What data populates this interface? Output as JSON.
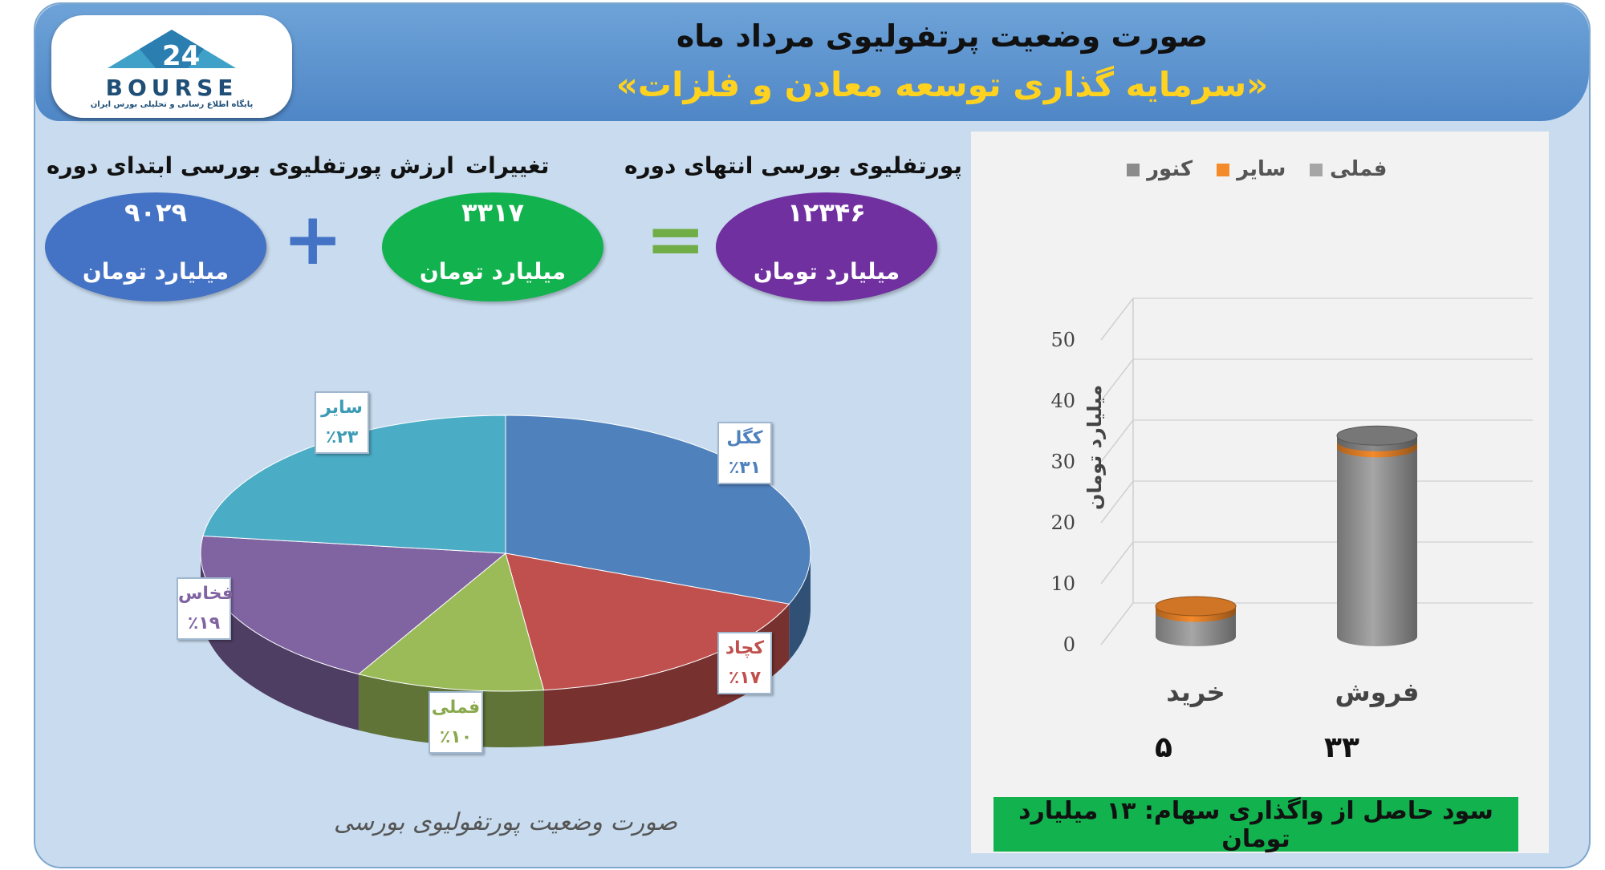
{
  "header": {
    "title": "صورت وضعیت پرتفولیوی مرداد ماه",
    "subtitle": "«سرمایه گذاری توسعه معادن و فلزات»",
    "logo_text": "BOURSE",
    "logo_sub": "پایگاه اطلاع رسانی و تحلیلی بورس ایران"
  },
  "summary": {
    "start": {
      "label": "ارزش پورتفلیوی بورسی ابتدای دوره",
      "value": "۹۰۲۹",
      "unit": "میلیارد تومان"
    },
    "change": {
      "label": "تغییرات",
      "value": "۳۳۱۷",
      "unit": "میلیارد تومان"
    },
    "end": {
      "label": "ارزش پورتفلیوی بورسی انتهای دوره",
      "value": "۱۲۳۴۶",
      "unit": "میلیارد تومان"
    },
    "plus": "+",
    "equals": "="
  },
  "chart_data": [
    {
      "type": "pie",
      "title": "",
      "caption": "صورت وضعیت پورتفولیوی بورسی",
      "slices": [
        {
          "label": "کگل",
          "value": 31,
          "display": "٪۳۱",
          "color": "#4f81bd"
        },
        {
          "label": "کچاد",
          "value": 17,
          "display": "٪۱۷",
          "color": "#c0504d"
        },
        {
          "label": "فملی",
          "value": 10,
          "display": "٪۱۰",
          "color": "#9bbb59"
        },
        {
          "label": "فخاس",
          "value": 19,
          "display": "٪۱۹",
          "color": "#8064a2"
        },
        {
          "label": "سایر",
          "value": 23,
          "display": "٪۲۳",
          "color": "#4bacc6"
        }
      ]
    },
    {
      "type": "bar",
      "categories": [
        "خرید",
        "فروش"
      ],
      "series": [
        {
          "name": "فملی",
          "values": [
            4,
            31
          ],
          "color": "#a6a6a6"
        },
        {
          "name": "سایر",
          "values": [
            1,
            1
          ],
          "color": "#f58a2b"
        },
        {
          "name": "کنور",
          "values": [
            0,
            1
          ],
          "color": "#8c8c8c"
        }
      ],
      "totals": [
        "۵",
        "۳۳"
      ],
      "ylabel": "میلیارد تومان",
      "yticks": [
        0,
        10,
        20,
        30,
        40,
        50
      ],
      "ylim": [
        0,
        50
      ],
      "legend": "top",
      "grid": true
    }
  ],
  "profit": "سود حاصل از واگذاری سهام: ۱۳ میلیارد تومان"
}
